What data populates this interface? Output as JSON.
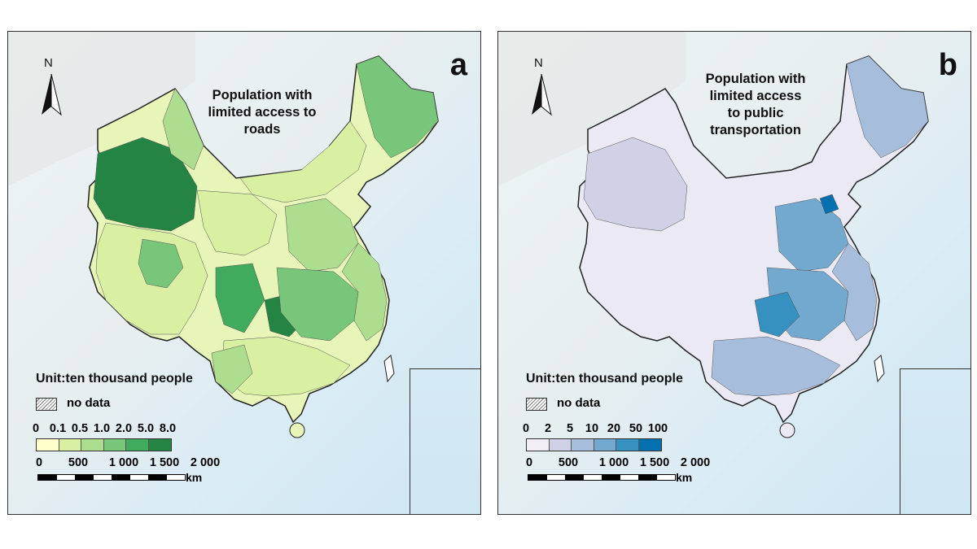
{
  "panels": [
    {
      "letter": "a",
      "title_lines": [
        "Population with",
        "limited access to",
        "roads"
      ],
      "north": "N",
      "unit": "Unit:ten thousand people",
      "no_data": "no data",
      "legend_ticks": [
        "0",
        "0.1",
        "0.5",
        "1.0",
        "2.0",
        "5.0",
        "8.0"
      ],
      "colors": [
        "#ffffcc",
        "#d9f0a3",
        "#addd8e",
        "#78c679",
        "#41ab5d",
        "#238443"
      ],
      "scale_labels": [
        "0",
        "500",
        "1 000",
        "1 500",
        "2 000"
      ],
      "scale_unit": "km"
    },
    {
      "letter": "b",
      "title_lines": [
        "Population with",
        "limited access",
        "to public",
        "transportation"
      ],
      "north": "N",
      "unit": "Unit:ten thousand people",
      "no_data": "no data",
      "legend_ticks": [
        "0",
        "2",
        "5",
        "10",
        "20",
        "50",
        "100"
      ],
      "colors": [
        "#f1eef6",
        "#d0d1e6",
        "#a6bddb",
        "#74a9cf",
        "#3690c0",
        "#0570b0"
      ],
      "scale_labels": [
        "0",
        "500",
        "1 000",
        "1 500",
        "2 000"
      ],
      "scale_unit": "km"
    }
  ]
}
